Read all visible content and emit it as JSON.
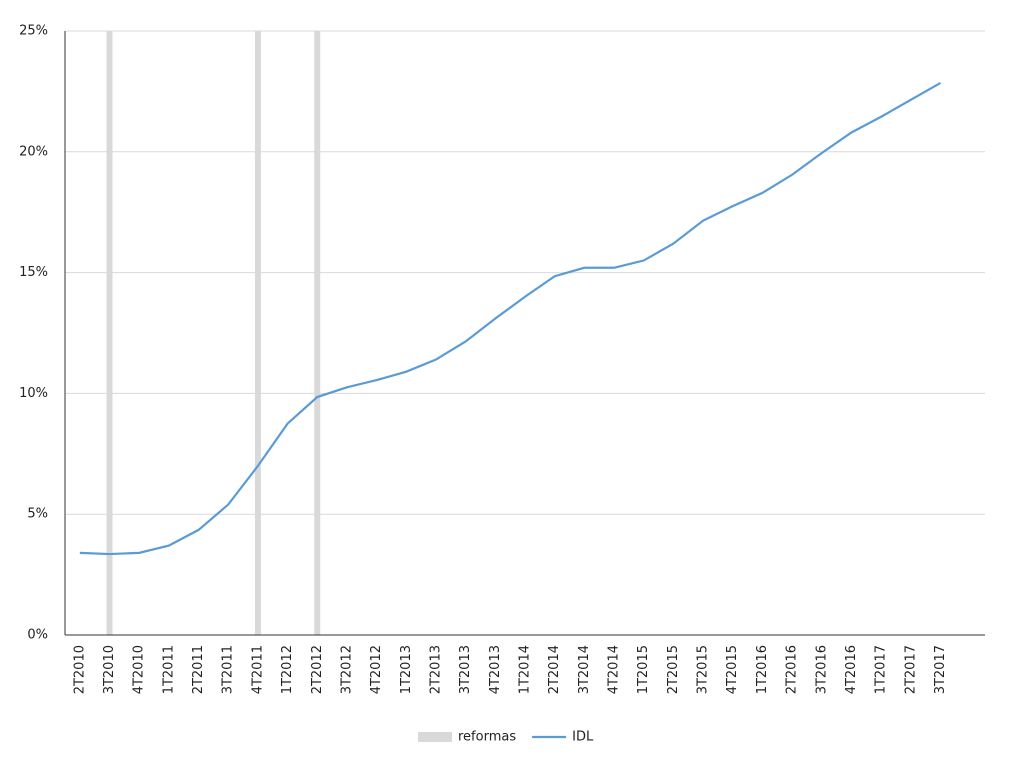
{
  "chart_data": {
    "type": "line",
    "categories": [
      "2T2010",
      "3T2010",
      "4T2010",
      "1T2011",
      "2T2011",
      "3T2011",
      "4T2011",
      "1T2012",
      "2T2012",
      "3T2012",
      "4T2012",
      "1T2013",
      "2T2013",
      "3T2013",
      "4T2013",
      "1T2014",
      "2T2014",
      "3T2014",
      "4T2014",
      "1T2015",
      "2T2015",
      "3T2015",
      "4T2015",
      "1T2016",
      "2T2016",
      "3T2016",
      "4T2016",
      "1T2017",
      "2T2017",
      "3T2017",
      null
    ],
    "series": [
      {
        "name": "reformas",
        "type": "bar",
        "color": "#d9d9d9",
        "values": [
          null,
          25,
          null,
          null,
          null,
          null,
          25,
          null,
          25,
          null,
          null,
          null,
          null,
          null,
          null,
          null,
          null,
          null,
          null,
          null,
          null,
          null,
          null,
          null,
          null,
          null,
          null,
          null,
          null,
          null,
          null
        ]
      },
      {
        "name": "IDL",
        "type": "line",
        "color": "#5b9bd5",
        "values": [
          3.4,
          3.35,
          3.4,
          3.7,
          4.35,
          5.4,
          7.0,
          8.75,
          9.85,
          10.25,
          10.55,
          10.9,
          11.4,
          12.15,
          13.1,
          14.0,
          14.85,
          15.2,
          15.2,
          15.5,
          16.2,
          17.15,
          17.75,
          18.3,
          19.05,
          19.95,
          20.8,
          21.45,
          22.15,
          22.85,
          null
        ]
      }
    ],
    "ylim": [
      0,
      25
    ],
    "yticks": [
      {
        "value": 0,
        "label": "0%"
      },
      {
        "value": 5,
        "label": "5%"
      },
      {
        "value": 10,
        "label": "10%"
      },
      {
        "value": 15,
        "label": "15%"
      },
      {
        "value": 20,
        "label": "20%"
      },
      {
        "value": 25,
        "label": "25%"
      }
    ],
    "grid": true,
    "legend": "bottom"
  }
}
